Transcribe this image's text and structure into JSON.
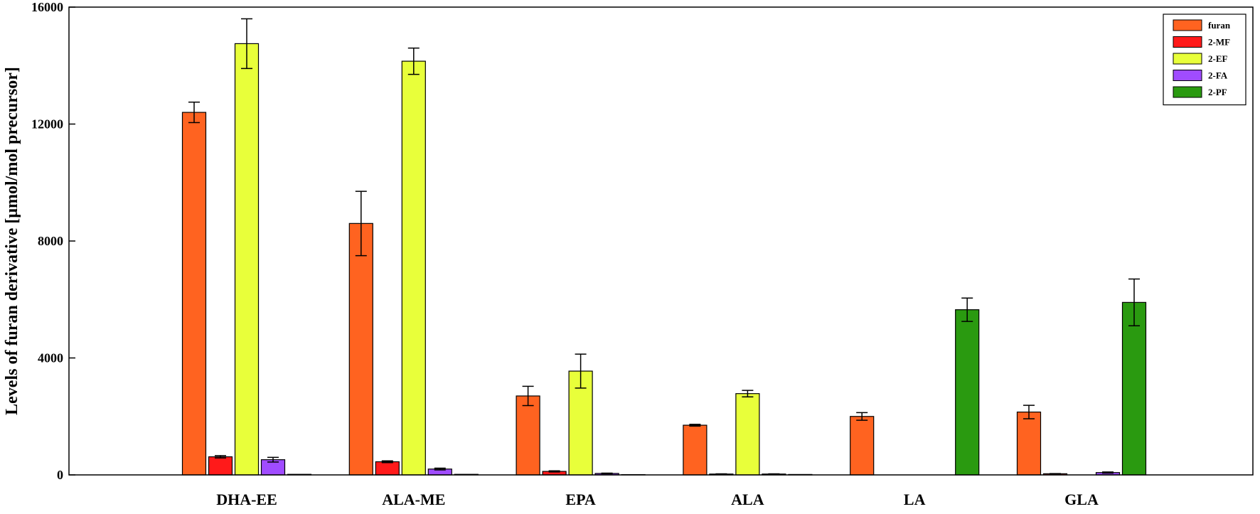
{
  "chart_data": {
    "type": "bar",
    "title": "",
    "xlabel": "",
    "ylabel": "Levels of furan derivative [μmol/mol precursor]",
    "ylim": [
      0,
      16000
    ],
    "yticks": [
      0,
      4000,
      8000,
      12000,
      16000
    ],
    "grid": false,
    "legend_position": "top-right",
    "categories": [
      "DHA-EE",
      "ALA-ME",
      "EPA",
      "ALA",
      "LA",
      "GLA"
    ],
    "series": [
      {
        "name": "furan",
        "color": "#ff6320",
        "values": [
          12400,
          8600,
          2700,
          1700,
          2000,
          2150
        ],
        "errors": [
          350,
          1100,
          330,
          30,
          130,
          230
        ]
      },
      {
        "name": "2-MF",
        "color": "#ff1a1a",
        "values": [
          620,
          450,
          120,
          30,
          0,
          40
        ],
        "errors": [
          40,
          30,
          20,
          5,
          0,
          5
        ]
      },
      {
        "name": "2-EF",
        "color": "#e8ff3a",
        "values": [
          14750,
          14150,
          3550,
          2780,
          0,
          0
        ],
        "errors": [
          850,
          450,
          580,
          110,
          0,
          0
        ]
      },
      {
        "name": "2-FA",
        "color": "#a04cff",
        "values": [
          520,
          200,
          50,
          30,
          0,
          80
        ],
        "errors": [
          80,
          30,
          10,
          5,
          0,
          20
        ]
      },
      {
        "name": "2-PF",
        "color": "#2a9a10",
        "values": [
          20,
          20,
          10,
          15,
          5650,
          5900
        ],
        "errors": [
          0,
          0,
          0,
          0,
          400,
          800
        ]
      }
    ]
  }
}
